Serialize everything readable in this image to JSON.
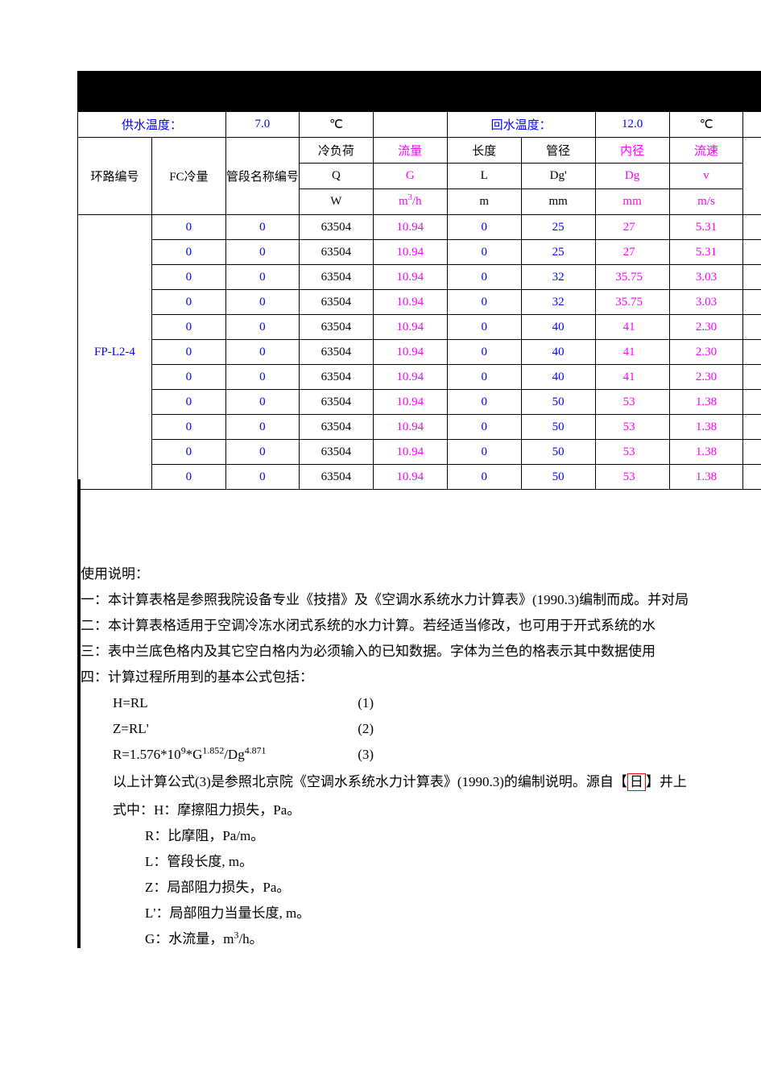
{
  "header": {
    "supply_temp_label": "供水温度：",
    "supply_temp_value": "7.0",
    "supply_temp_unit": "℃",
    "return_temp_label": "回水温度：",
    "return_temp_value": "12.0",
    "return_temp_unit": "℃"
  },
  "col_headers": {
    "loop_id": "环路编号",
    "fc_load": "FC冷量",
    "pipe_name": "管段名称编号",
    "q_label": "冷负荷",
    "q_sym": "Q",
    "q_unit": "W",
    "g_label": "流量",
    "g_sym": "G",
    "g_unit_html": "m<sup>3</sup>/h",
    "l_label": "长度",
    "l_sym": "L",
    "l_unit": "m",
    "dg_label": "管径",
    "dg_sym": "Dg'",
    "dg_unit": "mm",
    "dgi_label": "内径",
    "dgi_sym": "Dg",
    "dgi_unit": "mm",
    "v_label": "流速",
    "v_sym": "v",
    "v_unit": "m/s"
  },
  "loop_id": "FP-L2-4",
  "rows": [
    {
      "fc": "0",
      "pipe": "0",
      "q": "63504",
      "g": "10.94",
      "l": "0",
      "dg": "25",
      "dgi": "27",
      "v": "5.31"
    },
    {
      "fc": "0",
      "pipe": "0",
      "q": "63504",
      "g": "10.94",
      "l": "0",
      "dg": "25",
      "dgi": "27",
      "v": "5.31"
    },
    {
      "fc": "0",
      "pipe": "0",
      "q": "63504",
      "g": "10.94",
      "l": "0",
      "dg": "32",
      "dgi": "35.75",
      "v": "3.03"
    },
    {
      "fc": "0",
      "pipe": "0",
      "q": "63504",
      "g": "10.94",
      "l": "0",
      "dg": "32",
      "dgi": "35.75",
      "v": "3.03"
    },
    {
      "fc": "0",
      "pipe": "0",
      "q": "63504",
      "g": "10.94",
      "l": "0",
      "dg": "40",
      "dgi": "41",
      "v": "2.30"
    },
    {
      "fc": "0",
      "pipe": "0",
      "q": "63504",
      "g": "10.94",
      "l": "0",
      "dg": "40",
      "dgi": "41",
      "v": "2.30"
    },
    {
      "fc": "0",
      "pipe": "0",
      "q": "63504",
      "g": "10.94",
      "l": "0",
      "dg": "40",
      "dgi": "41",
      "v": "2.30"
    },
    {
      "fc": "0",
      "pipe": "0",
      "q": "63504",
      "g": "10.94",
      "l": "0",
      "dg": "50",
      "dgi": "53",
      "v": "1.38"
    },
    {
      "fc": "0",
      "pipe": "0",
      "q": "63504",
      "g": "10.94",
      "l": "0",
      "dg": "50",
      "dgi": "53",
      "v": "1.38"
    },
    {
      "fc": "0",
      "pipe": "0",
      "q": "63504",
      "g": "10.94",
      "l": "0",
      "dg": "50",
      "dgi": "53",
      "v": "1.38"
    },
    {
      "fc": "0",
      "pipe": "0",
      "q": "63504",
      "g": "10.94",
      "l": "0",
      "dg": "50",
      "dgi": "53",
      "v": "1.38"
    }
  ],
  "notes": {
    "title": "使用说明：",
    "line1": "一：本计算表格是参照我院设备专业《技措》及《空调水系统水力计算表》(1990.3)编制而成。并对局",
    "line2": "二：本计算表格适用于空调冷冻水闭式系统的水力计算。若经适当修改，也可用于开式系统的水",
    "line3": "三：表中兰底色格内及其它空白格内为必须输入的已知数据。字体为兰色的格表示其中数据使用",
    "line4": "四：计算过程所用到的基本公式包括：",
    "formula1_lhs": "H=RL",
    "formula1_num": "(1)",
    "formula2_lhs": "Z=RL'",
    "formula2_num": "(2)",
    "formula3_lhs_html": "R=1.576*10<sup>9</sup>*G<sup>1.852</sup>/Dg<sup>4.871</sup>",
    "formula3_num": "(3)",
    "line_after_formulas_part1": "以上计算公式(3)是参照北京院《空调水系统水力计算表》(1990.3)的编制说明。源自【",
    "line_after_formulas_redbox": "日",
    "line_after_formulas_part2": "】井上",
    "line_shizhong": "式中：H：摩擦阻力损失，Pa。",
    "def_R": "R：比摩阻，Pa/m。",
    "def_L": "L：管段长度, m。",
    "def_Z": "Z：局部阻力损失，Pa。",
    "def_Lp": "L'：局部阻力当量长度, m。",
    "def_G_html": "G：水流量，m<sup>3</sup>/h。"
  },
  "colors": {
    "blue": "#0000ff",
    "magenta": "#ff00ff",
    "black": "#000000",
    "border": "#000000",
    "redbox": "#ff0000",
    "background": "#ffffff"
  }
}
